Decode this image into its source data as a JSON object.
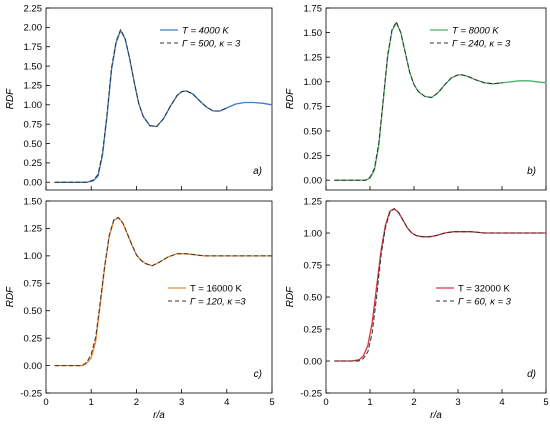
{
  "chart_data": [
    {
      "type": "line",
      "panel_label": "a)",
      "ylabel": "RDF",
      "xlabel": "",
      "xlim": [
        0,
        5
      ],
      "ylim": [
        -0.1,
        2.25
      ],
      "yticks": [
        "0.00",
        "0.25",
        "0.50",
        "0.75",
        "1.00",
        "1.25",
        "1.50",
        "1.75",
        "2.00",
        "2.25"
      ],
      "ytick_values": [
        0,
        0.25,
        0.5,
        0.75,
        1,
        1.25,
        1.5,
        1.75,
        2,
        2.25
      ],
      "xticks": [],
      "legend_placement": "top-right",
      "series": [
        {
          "name": "T = 4000 K",
          "style": "solid",
          "color": "#3a7dc9",
          "x": [
            0.2,
            0.6,
            0.9,
            1.05,
            1.15,
            1.25,
            1.35,
            1.45,
            1.55,
            1.65,
            1.75,
            1.85,
            1.95,
            2.05,
            2.15,
            2.3,
            2.45,
            2.6,
            2.75,
            2.9,
            3.0,
            3.1,
            3.25,
            3.4,
            3.55,
            3.7,
            3.85,
            4.0,
            4.2,
            4.4,
            4.6,
            4.8,
            5.0
          ],
          "y": [
            0.0,
            0.0,
            0.0,
            0.02,
            0.08,
            0.35,
            0.85,
            1.45,
            1.8,
            1.96,
            1.85,
            1.6,
            1.3,
            1.02,
            0.85,
            0.73,
            0.72,
            0.82,
            0.98,
            1.12,
            1.17,
            1.18,
            1.14,
            1.05,
            0.97,
            0.92,
            0.92,
            0.96,
            1.01,
            1.03,
            1.03,
            1.02,
            1.0
          ]
        },
        {
          "name": "Γ = 500, κ = 3",
          "style": "dashed",
          "color": "#333333",
          "x": [
            0.2,
            0.6,
            0.9,
            1.05,
            1.15,
            1.25,
            1.35,
            1.45,
            1.55,
            1.65,
            1.75,
            1.85,
            1.95,
            2.05,
            2.15,
            2.3,
            2.45,
            2.6,
            2.75,
            2.9,
            3.0,
            3.1,
            3.25,
            3.4,
            3.55,
            3.7,
            3.85,
            4.0
          ],
          "y": [
            0.0,
            0.0,
            0.0,
            0.03,
            0.1,
            0.38,
            0.88,
            1.48,
            1.82,
            1.97,
            1.86,
            1.6,
            1.3,
            1.02,
            0.85,
            0.73,
            0.72,
            0.82,
            0.98,
            1.12,
            1.17,
            1.18,
            1.14,
            1.05,
            0.97,
            0.92,
            0.92,
            0.96
          ]
        }
      ]
    },
    {
      "type": "line",
      "panel_label": "b)",
      "ylabel": "RDF",
      "xlabel": "",
      "xlim": [
        0,
        5
      ],
      "ylim": [
        -0.1,
        1.75
      ],
      "yticks": [
        "0.00",
        "0.25",
        "0.50",
        "0.75",
        "1.00",
        "1.25",
        "1.50",
        "1.75"
      ],
      "ytick_values": [
        0,
        0.25,
        0.5,
        0.75,
        1,
        1.25,
        1.5,
        1.75
      ],
      "xticks": [],
      "legend_placement": "top-right",
      "series": [
        {
          "name": "T = 8000 K",
          "style": "solid",
          "color": "#4caf64",
          "x": [
            0.2,
            0.6,
            0.9,
            1.0,
            1.1,
            1.2,
            1.3,
            1.4,
            1.5,
            1.6,
            1.7,
            1.8,
            1.9,
            2.0,
            2.1,
            2.25,
            2.4,
            2.55,
            2.7,
            2.85,
            3.0,
            3.1,
            3.25,
            3.4,
            3.6,
            3.8,
            4.0,
            4.2,
            4.4,
            4.6,
            4.8,
            5.0
          ],
          "y": [
            0.0,
            0.0,
            0.0,
            0.02,
            0.1,
            0.35,
            0.8,
            1.25,
            1.52,
            1.6,
            1.5,
            1.3,
            1.1,
            0.97,
            0.9,
            0.85,
            0.84,
            0.89,
            0.97,
            1.04,
            1.07,
            1.07,
            1.05,
            1.02,
            0.99,
            0.98,
            0.99,
            1.0,
            1.01,
            1.01,
            1.0,
            0.99
          ]
        },
        {
          "name": "Γ = 240, κ = 3",
          "style": "dashed",
          "color": "#333333",
          "x": [
            0.2,
            0.6,
            0.9,
            1.0,
            1.1,
            1.2,
            1.3,
            1.4,
            1.5,
            1.6,
            1.7,
            1.8,
            1.9,
            2.0,
            2.1,
            2.25,
            2.4,
            2.55,
            2.7,
            2.85,
            3.0,
            3.1,
            3.25,
            3.4,
            3.6,
            3.8,
            4.0
          ],
          "y": [
            0.0,
            0.0,
            0.0,
            0.03,
            0.12,
            0.38,
            0.82,
            1.27,
            1.53,
            1.61,
            1.5,
            1.3,
            1.1,
            0.97,
            0.9,
            0.85,
            0.84,
            0.89,
            0.97,
            1.04,
            1.07,
            1.07,
            1.05,
            1.02,
            0.99,
            0.98,
            0.99
          ]
        }
      ]
    },
    {
      "type": "line",
      "panel_label": "c)",
      "ylabel": "RDF",
      "xlabel": "r/a",
      "xlim": [
        0,
        5
      ],
      "ylim": [
        -0.25,
        1.5
      ],
      "yticks": [
        "-0.25",
        "0.00",
        "0.25",
        "0.50",
        "0.75",
        "1.00",
        "1.25",
        "1.50"
      ],
      "ytick_values": [
        -0.25,
        0,
        0.25,
        0.5,
        0.75,
        1,
        1.25,
        1.5
      ],
      "xticks": [
        "0",
        "1",
        "2",
        "3",
        "4",
        "5"
      ],
      "legend_placement": "center-right",
      "series": [
        {
          "name": "T = 16000 K",
          "style": "solid",
          "color": "#f08a2e",
          "x": [
            0.2,
            0.6,
            0.8,
            0.9,
            1.0,
            1.1,
            1.2,
            1.3,
            1.4,
            1.5,
            1.6,
            1.7,
            1.8,
            1.9,
            2.0,
            2.1,
            2.2,
            2.35,
            2.5,
            2.7,
            2.9,
            3.1,
            3.3,
            3.5,
            3.8,
            4.1,
            4.4,
            4.7,
            5.0
          ],
          "y": [
            0.0,
            0.0,
            0.0,
            0.02,
            0.07,
            0.22,
            0.55,
            0.9,
            1.18,
            1.32,
            1.35,
            1.3,
            1.2,
            1.1,
            1.01,
            0.96,
            0.93,
            0.91,
            0.94,
            0.99,
            1.02,
            1.02,
            1.01,
            1.0,
            1.0,
            1.0,
            1.0,
            1.0,
            1.0
          ]
        },
        {
          "name": "Γ = 120, κ =3",
          "style": "dashed",
          "color": "#333333",
          "x": [
            0.2,
            0.6,
            0.8,
            0.9,
            1.0,
            1.1,
            1.2,
            1.3,
            1.4,
            1.5,
            1.6,
            1.7,
            1.8,
            1.9,
            2.0,
            2.1,
            2.2,
            2.35,
            2.5,
            2.7,
            2.9,
            3.1,
            3.3,
            3.5,
            3.8,
            4.1,
            4.4,
            4.7,
            5.0
          ],
          "y": [
            0.0,
            0.0,
            0.0,
            0.03,
            0.1,
            0.26,
            0.58,
            0.92,
            1.19,
            1.33,
            1.35,
            1.3,
            1.2,
            1.1,
            1.01,
            0.96,
            0.93,
            0.91,
            0.94,
            0.99,
            1.02,
            1.02,
            1.01,
            1.0,
            1.0,
            1.0,
            1.0,
            1.0,
            1.0
          ]
        }
      ]
    },
    {
      "type": "line",
      "panel_label": "d)",
      "ylabel": "RDF",
      "xlabel": "r/a",
      "xlim": [
        0,
        5
      ],
      "ylim": [
        -0.25,
        1.25
      ],
      "yticks": [
        "-0.25",
        "0.00",
        "0.25",
        "0.50",
        "0.75",
        "1.00",
        "1.25"
      ],
      "ytick_values": [
        -0.25,
        0,
        0.25,
        0.5,
        0.75,
        1,
        1.25
      ],
      "xticks": [
        "0",
        "1",
        "2",
        "3",
        "4",
        "5"
      ],
      "legend_placement": "center-right",
      "series": [
        {
          "name": "T = 32000 K",
          "style": "solid",
          "color": "#d9333a",
          "x": [
            0.2,
            0.6,
            0.75,
            0.85,
            0.95,
            1.05,
            1.15,
            1.25,
            1.35,
            1.45,
            1.55,
            1.65,
            1.75,
            1.85,
            1.95,
            2.05,
            2.2,
            2.35,
            2.5,
            2.7,
            2.9,
            3.1,
            3.3,
            3.6,
            3.9,
            4.2,
            4.5,
            4.8,
            5.0
          ],
          "y": [
            0.0,
            0.0,
            0.01,
            0.04,
            0.12,
            0.3,
            0.58,
            0.86,
            1.06,
            1.17,
            1.19,
            1.16,
            1.1,
            1.04,
            1.0,
            0.98,
            0.97,
            0.97,
            0.98,
            1.0,
            1.01,
            1.01,
            1.01,
            1.0,
            1.0,
            1.0,
            1.0,
            1.0,
            1.0
          ]
        },
        {
          "name": "Γ = 60, κ = 3",
          "style": "dashed",
          "color": "#333333",
          "x": [
            0.2,
            0.6,
            0.75,
            0.85,
            0.95,
            1.05,
            1.15,
            1.25,
            1.35,
            1.45,
            1.55,
            1.65,
            1.75,
            1.85,
            1.95,
            2.05,
            2.2,
            2.35,
            2.5,
            2.7,
            2.9,
            3.1,
            3.3,
            3.6,
            3.9,
            4.2,
            4.5,
            4.8,
            5.0
          ],
          "y": [
            0.0,
            0.0,
            0.0,
            0.02,
            0.07,
            0.22,
            0.5,
            0.82,
            1.04,
            1.16,
            1.19,
            1.16,
            1.1,
            1.04,
            1.0,
            0.98,
            0.97,
            0.97,
            0.98,
            1.0,
            1.01,
            1.01,
            1.01,
            1.0,
            1.0,
            1.0,
            1.0,
            1.0,
            1.0
          ]
        }
      ]
    }
  ]
}
